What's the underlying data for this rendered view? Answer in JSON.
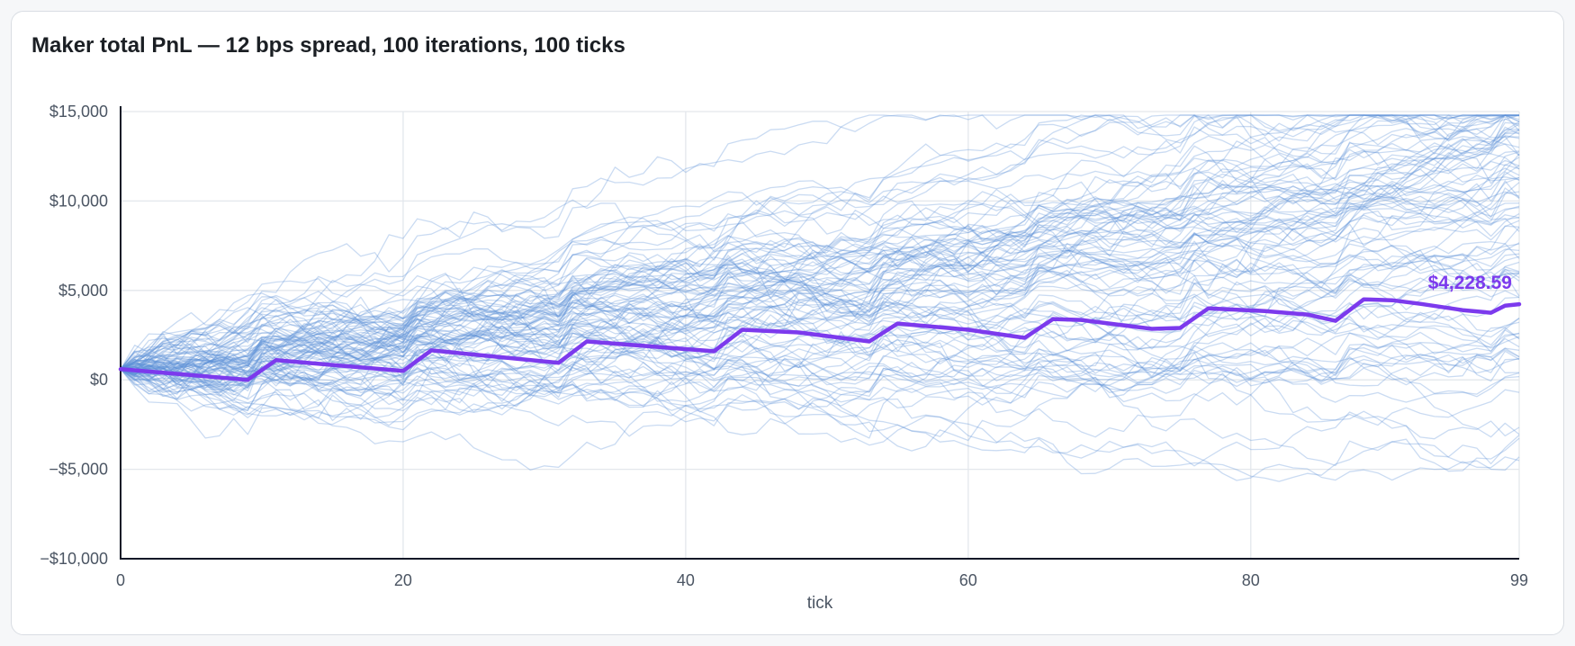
{
  "card": {
    "title": "Maker total PnL — 12 bps spread, 100 iterations, 100 ticks"
  },
  "chart_data": {
    "type": "line",
    "title": "Maker total PnL — 12 bps spread, 100 iterations, 100 ticks",
    "xlabel": "tick",
    "ylabel": "",
    "xlim": [
      0,
      99
    ],
    "ylim": [
      -10000,
      15000
    ],
    "x_ticks": [
      0,
      20,
      40,
      60,
      80,
      99
    ],
    "x_tick_labels": [
      "0",
      "20",
      "40",
      "60",
      "80",
      "99"
    ],
    "y_ticks": [
      -10000,
      -5000,
      0,
      5000,
      10000,
      15000
    ],
    "y_tick_labels": [
      "−$10,000",
      "−$5,000",
      "$0",
      "$5,000",
      "$10,000",
      "$15,000"
    ],
    "grid": true,
    "iterations": 100,
    "ticks": 100,
    "iteration_series_color": "#5b8fd6",
    "mean_series_color": "#7c3aed",
    "mean_series": {
      "x": [
        0,
        9,
        11,
        20,
        22,
        31,
        33,
        42,
        44,
        48,
        53,
        55,
        60,
        64,
        66,
        68,
        71,
        73,
        75,
        77,
        81,
        84,
        86,
        88,
        90,
        92,
        95,
        97,
        98,
        99
      ],
      "values": [
        600,
        0,
        1100,
        500,
        1650,
        950,
        2150,
        1600,
        2800,
        2650,
        2150,
        3150,
        2800,
        2350,
        3400,
        3350,
        3050,
        2850,
        2900,
        4000,
        3850,
        3650,
        3300,
        4500,
        4450,
        4250,
        3900,
        3750,
        4150,
        4228.59
      ]
    },
    "end_label": "$4,228.59"
  }
}
